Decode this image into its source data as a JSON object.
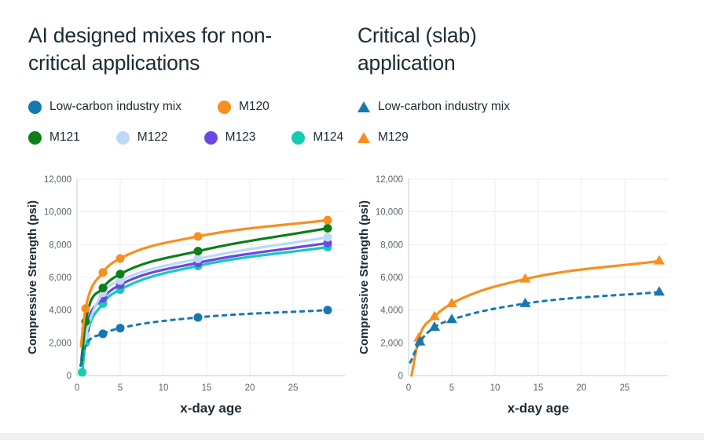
{
  "page": {
    "background": "#ffffff",
    "bottom_strip_color": "#efefef",
    "heading_color": "#1c2b33",
    "tick_color": "#56636c",
    "gridline_color": "#e9eef2",
    "axisline_color": "#cfd8dd"
  },
  "chart_data": [
    {
      "type": "line",
      "title": "AI designed mixes for non-critical applications",
      "xlabel": "x-day age",
      "ylabel": "Compressive Strength (psi)",
      "xlim": [
        0,
        31
      ],
      "ylim": [
        0,
        12000
      ],
      "xticks": [
        0,
        5,
        10,
        15,
        20,
        25
      ],
      "yticks": [
        0,
        2000,
        4000,
        6000,
        8000,
        10000,
        12000
      ],
      "grid": true,
      "legend_position": "top",
      "marker_shape": "circle",
      "legend_rows": [
        [
          0,
          1
        ],
        [
          2,
          3,
          4,
          5
        ]
      ],
      "series": [
        {
          "name": "Low-carbon industry mix",
          "color": "#1778b0",
          "dashed": true,
          "x": [
            0.4,
            1,
            3,
            5,
            14,
            29
          ],
          "y": [
            600,
            1800,
            2550,
            2900,
            3550,
            4000
          ],
          "points": {
            "x": [
              3,
              5,
              14,
              29
            ],
            "y": [
              2550,
              2900,
              3550,
              4000
            ]
          }
        },
        {
          "name": "M120",
          "color": "#f78f1e",
          "dashed": false,
          "x": [
            0.45,
            1,
            3,
            5,
            14,
            29
          ],
          "y": [
            1800,
            4100,
            6300,
            7150,
            8500,
            9500
          ],
          "points": {
            "x": [
              1,
              3,
              5,
              14,
              29
            ],
            "y": [
              4100,
              6300,
              7150,
              8500,
              9500
            ]
          }
        },
        {
          "name": "M121",
          "color": "#0e7e16",
          "dashed": false,
          "x": [
            0.5,
            1,
            3,
            5,
            14,
            29
          ],
          "y": [
            700,
            3300,
            5350,
            6200,
            7600,
            9000
          ],
          "points": {
            "x": [
              1,
              3,
              5,
              14,
              29
            ],
            "y": [
              3300,
              5350,
              6200,
              7600,
              9000
            ]
          }
        },
        {
          "name": "M122",
          "color": "#bcd9f7",
          "dashed": false,
          "x": [
            0.5,
            1,
            3,
            5,
            14,
            29
          ],
          "y": [
            900,
            2450,
            5050,
            5800,
            7130,
            8450
          ],
          "points": {
            "x": [
              1,
              3,
              5,
              14,
              29
            ],
            "y": [
              2450,
              5050,
              5800,
              7130,
              8450
            ]
          }
        },
        {
          "name": "M123",
          "color": "#6c47e2",
          "dashed": false,
          "x": [
            0.5,
            1,
            3,
            5,
            14,
            29
          ],
          "y": [
            1000,
            2850,
            4720,
            5550,
            6890,
            8100
          ],
          "points": {
            "x": [
              1,
              3,
              5,
              14,
              29
            ],
            "y": [
              2850,
              4720,
              5550,
              6890,
              8100
            ]
          }
        },
        {
          "name": "M124",
          "color": "#14cbb3",
          "dashed": false,
          "x": [
            0.6,
            1,
            3,
            5,
            14,
            29
          ],
          "y": [
            200,
            2020,
            4400,
            5250,
            6700,
            7850
          ],
          "points": {
            "x": [
              0.6,
              1,
              3,
              5,
              14,
              29
            ],
            "y": [
              200,
              2020,
              4400,
              5250,
              6700,
              7850
            ]
          }
        }
      ]
    },
    {
      "type": "line",
      "title": "Critical (slab) application",
      "xlabel": "x-day age",
      "ylabel": "Compressive Strength (psi)",
      "xlim": [
        0,
        30
      ],
      "ylim": [
        0,
        12000
      ],
      "xticks": [
        0,
        5,
        10,
        15,
        20,
        25
      ],
      "yticks": [
        0,
        2000,
        4000,
        6000,
        8000,
        10000,
        12000
      ],
      "grid": true,
      "legend_position": "top",
      "marker_shape": "triangle",
      "legend_rows": [
        [
          0
        ],
        [
          1
        ]
      ],
      "series": [
        {
          "name": "Low-carbon industry mix",
          "color": "#1778b0",
          "dashed": true,
          "x": [
            0.2,
            1.3,
            3,
            5,
            13.5,
            29
          ],
          "y": [
            800,
            2050,
            2950,
            3420,
            4400,
            5100
          ],
          "points": {
            "x": [
              1.3,
              3,
              5,
              13.5,
              29
            ],
            "y": [
              2050,
              2950,
              3420,
              4400,
              5100
            ]
          }
        },
        {
          "name": "M129",
          "color": "#f78f1e",
          "dashed": false,
          "x": [
            0.35,
            1.2,
            3,
            5,
            13.5,
            29
          ],
          "y": [
            0,
            2300,
            3600,
            4400,
            5900,
            7000
          ],
          "points": {
            "x": [
              1.2,
              3,
              5,
              13.5,
              29
            ],
            "y": [
              2300,
              3600,
              4400,
              5900,
              7000
            ]
          }
        }
      ]
    }
  ]
}
